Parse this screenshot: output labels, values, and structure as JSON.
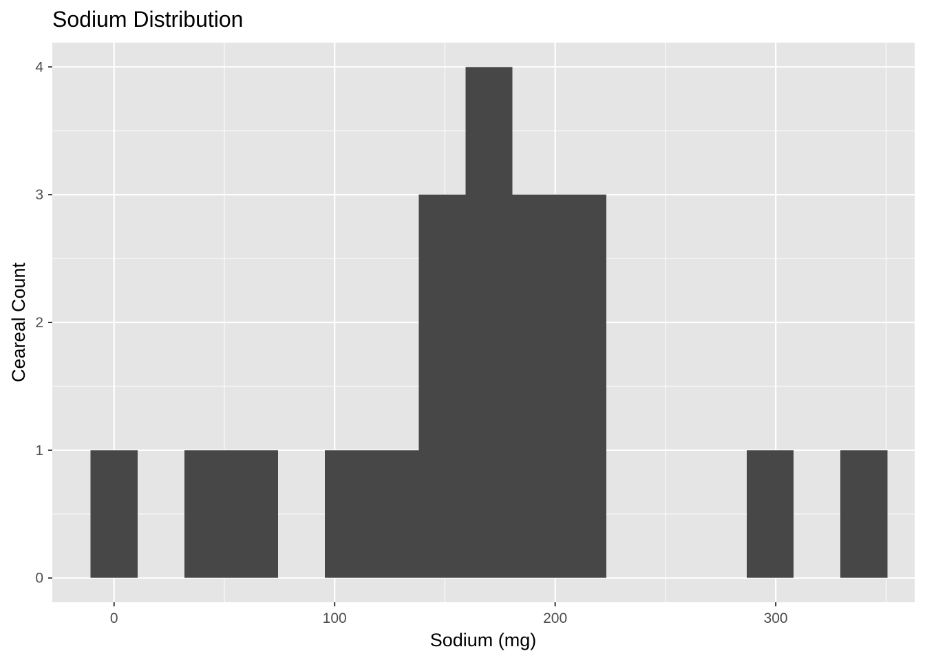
{
  "chart_data": {
    "type": "bar",
    "title": "Sodium Distribution",
    "xlabel": "Sodium (mg)",
    "ylabel": "Ceareal Count",
    "xlim": [
      -28,
      363
    ],
    "ylim": [
      -0.19,
      4.19
    ],
    "x_ticks": [
      0,
      100,
      200,
      300
    ],
    "y_ticks": [
      0,
      1,
      2,
      3,
      4
    ],
    "grid": true,
    "bin_width": 21.25,
    "bins": [
      {
        "x_start": -10.625,
        "x_end": 10.625,
        "count": 1
      },
      {
        "x_start": 31.875,
        "x_end": 53.125,
        "count": 1
      },
      {
        "x_start": 53.125,
        "x_end": 74.375,
        "count": 1
      },
      {
        "x_start": 95.625,
        "x_end": 116.875,
        "count": 1
      },
      {
        "x_start": 116.875,
        "x_end": 138.125,
        "count": 1
      },
      {
        "x_start": 138.125,
        "x_end": 159.375,
        "count": 3
      },
      {
        "x_start": 159.375,
        "x_end": 180.625,
        "count": 4
      },
      {
        "x_start": 180.625,
        "x_end": 201.875,
        "count": 3
      },
      {
        "x_start": 201.875,
        "x_end": 223.125,
        "count": 3
      },
      {
        "x_start": 286.875,
        "x_end": 308.125,
        "count": 1
      },
      {
        "x_start": 329.375,
        "x_end": 350.625,
        "count": 1
      }
    ],
    "colors": {
      "panel": "#e5e5e5",
      "grid_major": "#ffffff",
      "bar": "#474747",
      "tick_text": "#4d4d4d",
      "tick_mark": "#333333"
    }
  }
}
